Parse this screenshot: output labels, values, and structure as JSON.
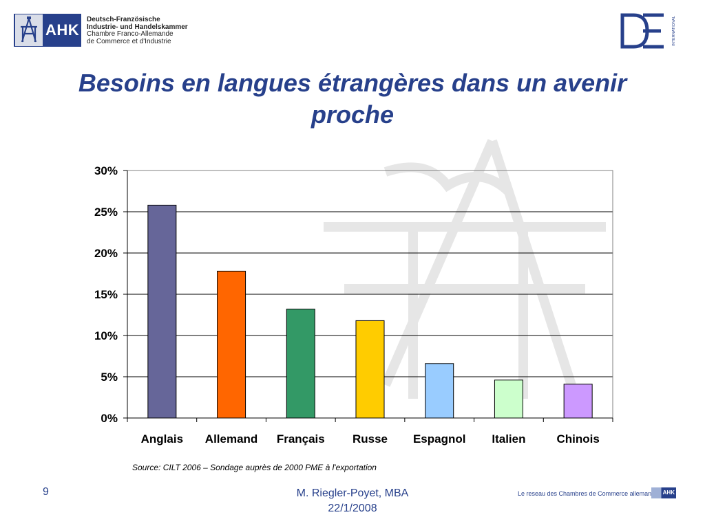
{
  "header": {
    "ahk_logo_text": "AHK",
    "org_line_1": "Deutsch-Französische",
    "org_line_2": "Industrie- und Handelskammer",
    "org_line_3": "Chambre Franco-Allemande",
    "org_line_4": "de Commerce et d'Industrie",
    "de_logo_text": "DE",
    "de_logo_sub": "INTERNATIONAL"
  },
  "slide": {
    "title_line_1": "Besoins en langues étrangères dans un avenir",
    "title_line_2": "proche",
    "source": "Source: CILT 2006 – Sondage auprès de 2000 PME à l'exportation"
  },
  "footer": {
    "page_number": "9",
    "author": "M. Riegler-Poyet, MBA",
    "date": "22/1/2008",
    "tagline": "Le reseau des Chambres de Commerce allemandes",
    "ahk_badge": "AHK"
  },
  "colors": {
    "title": "#27408b",
    "bars": [
      "#666699",
      "#ff6600",
      "#339966",
      "#ffcc00",
      "#99ccff",
      "#ccffcc",
      "#cc99ff"
    ]
  },
  "chart_data": {
    "type": "bar",
    "categories": [
      "Anglais",
      "Allemand",
      "Français",
      "Russe",
      "Espagnol",
      "Italien",
      "Chinois"
    ],
    "values": [
      25.8,
      17.8,
      13.2,
      11.8,
      6.6,
      4.6,
      4.1
    ],
    "ylim": [
      0,
      30
    ],
    "yticks": [
      0,
      5,
      10,
      15,
      20,
      25,
      30
    ],
    "ytick_labels": [
      "0%",
      "5%",
      "10%",
      "15%",
      "20%",
      "25%",
      "30%"
    ],
    "grid": true,
    "legend": "none"
  }
}
